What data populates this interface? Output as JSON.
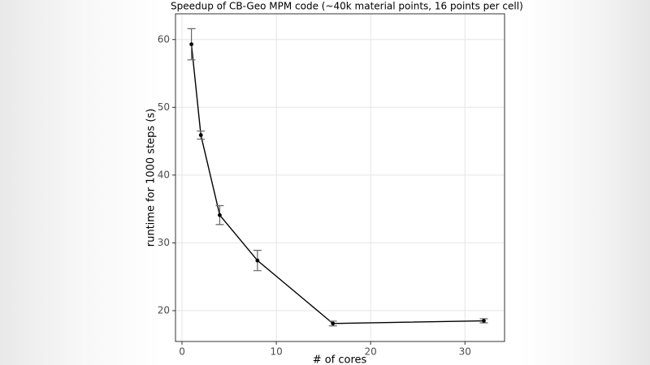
{
  "chart_data": {
    "type": "line",
    "title": "Speedup of CB-Geo MPM code (~40k material points, 16 points per cell)",
    "x_label": "# of cores",
    "y_label": "runtime for 1000 steps (s)",
    "x": [
      1,
      2,
      4,
      8,
      16,
      32
    ],
    "values": [
      59.3,
      45.9,
      34.1,
      27.4,
      18.1,
      18.5
    ],
    "errors": [
      2.3,
      0.6,
      1.4,
      1.5,
      0.35,
      0.3
    ],
    "color": "#000000",
    "error_color": "#666666",
    "xlim": [
      -0.69,
      34.2
    ],
    "ylim": [
      15.45,
      63.8
    ],
    "xticks": [
      0,
      10,
      20,
      30
    ],
    "yticks": [
      20,
      30,
      40,
      50,
      60
    ],
    "grid": true
  }
}
